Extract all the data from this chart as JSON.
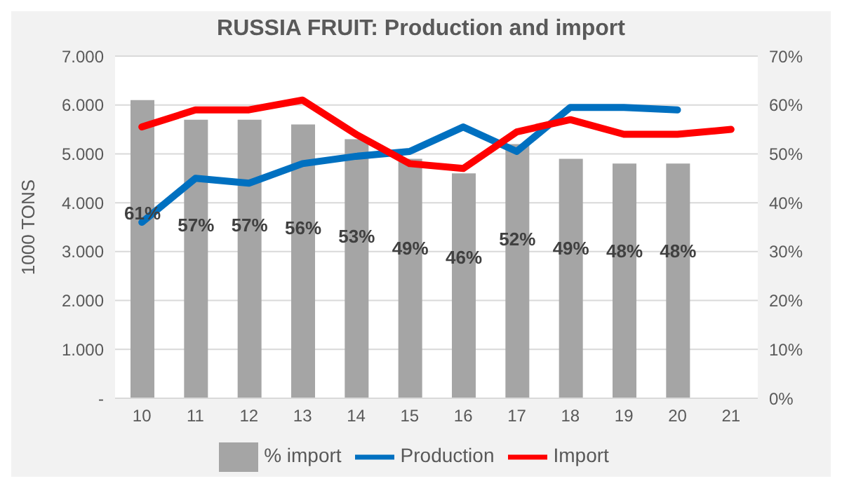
{
  "chart_data": {
    "type": "line",
    "title": "RUSSIA FRUIT: Production and import",
    "ylabel": "1000 TONS",
    "categories": [
      "10",
      "11",
      "12",
      "13",
      "14",
      "15",
      "16",
      "17",
      "18",
      "19",
      "20",
      "21"
    ],
    "series": [
      {
        "name": "% import",
        "type": "bar",
        "axis": "y2",
        "color": "#a5a5a5",
        "values": [
          61,
          57,
          57,
          56,
          53,
          49,
          46,
          52,
          49,
          48,
          48,
          null
        ],
        "value_labels": [
          "61%",
          "57%",
          "57%",
          "56%",
          "53%",
          "49%",
          "46%",
          "52%",
          "49%",
          "48%",
          "48%",
          null
        ]
      },
      {
        "name": "Production",
        "color": "#0070c0",
        "values": [
          3600,
          4500,
          4400,
          4800,
          4950,
          5050,
          5550,
          5050,
          5950,
          5950,
          5900,
          null
        ]
      },
      {
        "name": "Import",
        "color": "#ff0000",
        "values": [
          5550,
          5900,
          5900,
          6100,
          5400,
          4800,
          4700,
          5450,
          5700,
          5400,
          5400,
          5500
        ]
      }
    ],
    "ylim": [
      0,
      7000
    ],
    "yticks": [
      {
        "value": 0,
        "label": "-"
      },
      {
        "value": 1000,
        "label": "1.000"
      },
      {
        "value": 2000,
        "label": "2.000"
      },
      {
        "value": 3000,
        "label": "3.000"
      },
      {
        "value": 4000,
        "label": "4.000"
      },
      {
        "value": 5000,
        "label": "5.000"
      },
      {
        "value": 6000,
        "label": "6.000"
      },
      {
        "value": 7000,
        "label": "7.000"
      }
    ],
    "y2lim": [
      0,
      70
    ],
    "y2ticks": [
      {
        "value": 0,
        "label": "0%"
      },
      {
        "value": 10,
        "label": "10%"
      },
      {
        "value": 20,
        "label": "20%"
      },
      {
        "value": 30,
        "label": "30%"
      },
      {
        "value": 40,
        "label": "40%"
      },
      {
        "value": 50,
        "label": "50%"
      },
      {
        "value": 60,
        "label": "60%"
      },
      {
        "value": 70,
        "label": "70%"
      }
    ],
    "grid": "y",
    "legend": "bottom",
    "marker": "none",
    "line_style": "solid"
  }
}
